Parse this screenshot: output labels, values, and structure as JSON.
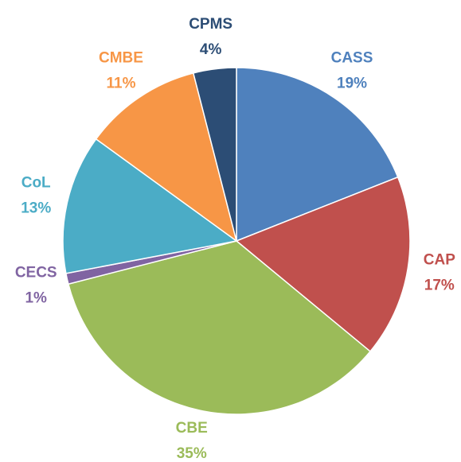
{
  "chart_data": {
    "type": "pie",
    "categories": [
      "CASS",
      "CAP",
      "CBE",
      "CECS",
      "CoL",
      "CMBE",
      "CPMS"
    ],
    "values": [
      19,
      17,
      35,
      1,
      13,
      11,
      4
    ],
    "value_labels": [
      "19%",
      "17%",
      "35%",
      "1%",
      "13%",
      "11%",
      "4%"
    ],
    "colors": [
      "#4f81bd",
      "#c0504d",
      "#9bbb59",
      "#8064a2",
      "#4bacc6",
      "#f79646",
      "#2c4d75"
    ]
  }
}
